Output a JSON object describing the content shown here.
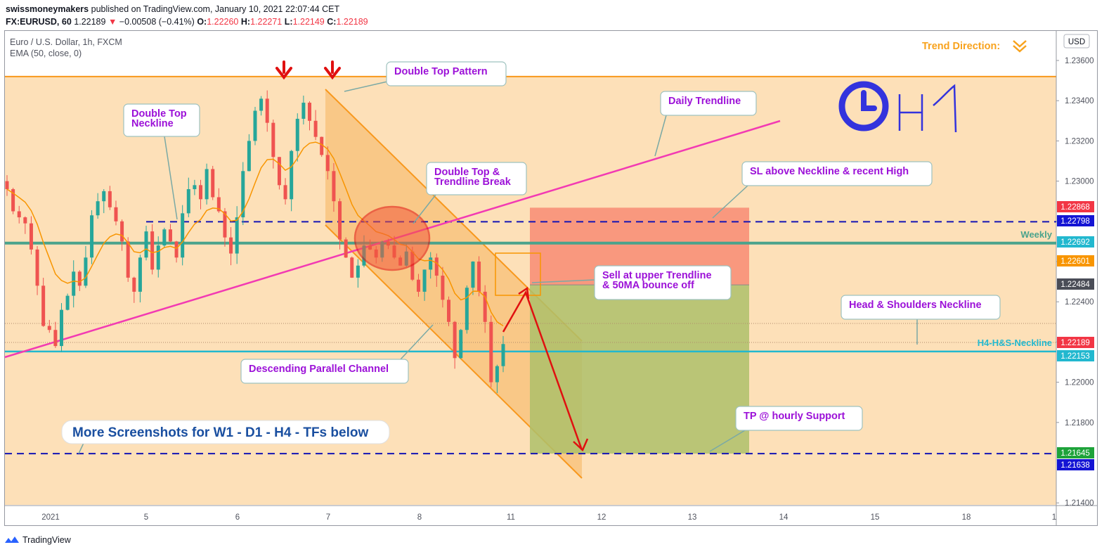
{
  "header": {
    "author": "swissmoneymakers",
    "published_text": "published on TradingView.com, January 10, 2021 22:07:44 CET",
    "symbol_line": "FX:EURUSD, 60",
    "last": "1.22189",
    "change_arrow": "▼",
    "change": "−0.00508 (−0.41%)",
    "o_label": "O:",
    "o": "1.22260",
    "h_label": "H:",
    "h": "1.22271",
    "l_label": "L:",
    "l": "1.22149",
    "c_label": "C:",
    "c": "1.22189"
  },
  "legend": {
    "instrument": "Euro / U.S. Dollar, 1h, FXCM",
    "indicator": "EMA (50, close, 0)"
  },
  "footer": {
    "brand": "TradingView",
    "logo_icon": "tradingview-logo-icon"
  },
  "colors": {
    "background_zone": "#fde0b8",
    "channel_fill": "#f7bd72",
    "channel_line": "#f8981d",
    "trendline": "#f23ab3",
    "weekly": "#4aa38c",
    "hs_neckline": "#22b8cf",
    "dashed": "#1414b4",
    "up_candle": "#26a69a",
    "down_candle": "#ef5350",
    "arrow": "#e01010",
    "label_text": "#9c11d8",
    "stop_zone": "#f9937a",
    "target_zone": "#aebf6a"
  },
  "chart_data": {
    "type": "candlestick",
    "currency": "USD",
    "x_ticks": [
      "2021",
      "5",
      "6",
      "7",
      "8",
      "11",
      "12",
      "13",
      "14",
      "15",
      "18",
      "1"
    ],
    "y_ticks": [
      "1.23600",
      "1.23400",
      "1.23200",
      "1.23000",
      "1.22800",
      "1.22600",
      "1.22400",
      "1.22200",
      "1.22000",
      "1.21800",
      "1.21400"
    ],
    "ylim": [
      1.2135,
      1.2372
    ],
    "price_labels": [
      {
        "value": "1.22868",
        "color": "#f23645"
      },
      {
        "value": "1.22798",
        "color": "#1414d4"
      },
      {
        "value": "1.22692",
        "color": "#22b8cf"
      },
      {
        "value": "1.22601",
        "color": "#f89500"
      },
      {
        "value": "1.22484",
        "color": "#4a4d57"
      },
      {
        "value": "1.22189",
        "color": "#f23645"
      },
      {
        "value": "1.22153",
        "color": "#22b8cf"
      },
      {
        "value": "1.21645",
        "color": "#1ea33a"
      },
      {
        "value": "1.21638",
        "color": "#1414d4"
      }
    ],
    "line_labels": {
      "weekly": "Weekly",
      "hs": "H4-H&S-Neckline"
    },
    "trend_direction_label": "Trend Direction:",
    "timeframe_logo": "H1",
    "series": [
      {
        "name": "EURUSD 1h",
        "kind": "ohlc_sampled",
        "closes": [
          1.2296,
          1.2285,
          1.2282,
          1.2279,
          1.2266,
          1.2248,
          1.2228,
          1.2226,
          1.2218,
          1.2236,
          1.2243,
          1.2255,
          1.2248,
          1.2262,
          1.2283,
          1.229,
          1.2295,
          1.2287,
          1.228,
          1.227,
          1.2252,
          1.2245,
          1.2262,
          1.2275,
          1.2256,
          1.2268,
          1.2276,
          1.227,
          1.2262,
          1.2284,
          1.2296,
          1.2298,
          1.2291,
          1.2306,
          1.2292,
          1.2285,
          1.2272,
          1.2264,
          1.2282,
          1.2305,
          1.232,
          1.2335,
          1.2341,
          1.2329,
          1.2312,
          1.2298,
          1.2291,
          1.2315,
          1.2331,
          1.2339,
          1.233,
          1.2322,
          1.2313,
          1.2305,
          1.229,
          1.2271,
          1.2262,
          1.2252,
          1.2258,
          1.2268,
          1.2266,
          1.2262,
          1.227,
          1.2268,
          1.2262,
          1.2258,
          1.2265,
          1.2251,
          1.2245,
          1.2256,
          1.2262,
          1.2253,
          1.2241,
          1.223,
          1.2212,
          1.2226,
          1.2247,
          1.226,
          1.2245,
          1.223,
          1.22,
          1.2208,
          1.2219
        ],
        "note": "visible price path from Dec 31 to Jan 8"
      },
      {
        "name": "EMA (50, close, 0)",
        "kind": "line"
      }
    ],
    "levels": {
      "resistance_top": 1.2352,
      "stop_loss": 1.22868,
      "neckline": 1.22798,
      "weekly": 1.22692,
      "entry": 1.22484,
      "hs_neckline": 1.22153,
      "take_profit": 1.21645
    },
    "annotations": [
      "Double Top Pattern",
      "Double Top Neckline",
      "Daily Trendline",
      "Double Top & Trendline Break",
      "SL above Neckline & recent High",
      "Sell at upper Trendline & 50MA bounce off",
      "Head & Shoulders Neckline",
      "Descending Parallel Channel",
      "TP @ hourly Support",
      "More Screenshots for W1 - D1 - H4 - TFs below"
    ]
  }
}
